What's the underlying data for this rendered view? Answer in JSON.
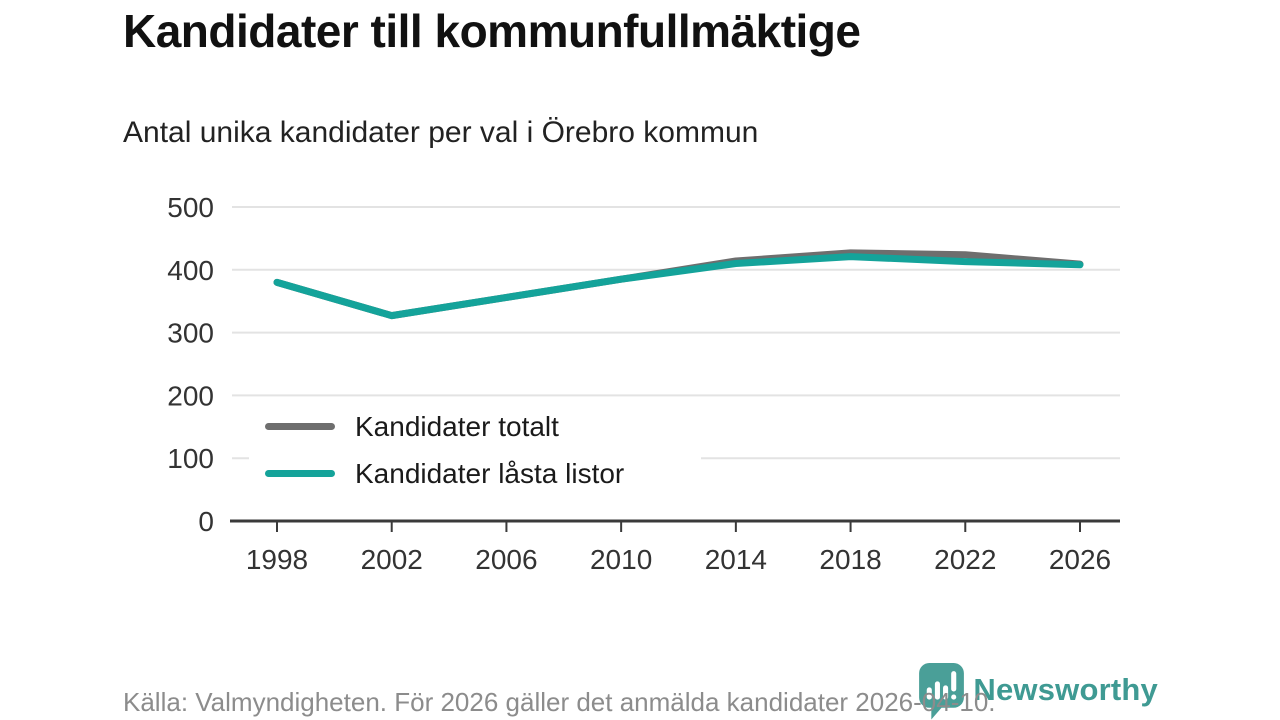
{
  "header": {
    "title": "Kandidater till kommunfullmäktige",
    "subtitle": "Antal unika kandidater per val i Örebro kommun"
  },
  "chart_data": {
    "type": "line",
    "title": "Kandidater till kommunfullmäktige",
    "subtitle": "Antal unika kandidater per val i Örebro kommun",
    "x": [
      1998,
      2002,
      2006,
      2010,
      2014,
      2018,
      2022,
      2026
    ],
    "series": [
      {
        "name": "Kandidater totalt",
        "color": "#6e6e6e",
        "values": [
          380,
          327,
          356,
          385,
          414,
          427,
          424,
          409
        ]
      },
      {
        "name": "Kandidater låsta listor",
        "color": "#14a39a",
        "values": [
          380,
          327,
          356,
          385,
          410,
          421,
          413,
          408
        ]
      }
    ],
    "xlabel": "",
    "ylabel": "",
    "ylim": [
      0,
      500
    ],
    "yticks": [
      0,
      100,
      200,
      300,
      400,
      500
    ],
    "grid": "horizontal-only",
    "gridline_color": "#e3e3e3",
    "axis_color": "#3a3a3a",
    "legend_position": "inside-bottom-left"
  },
  "footer": {
    "source": "Källa: Valmyndigheten. För 2026 gäller det anmälda kandidater 2026-04-10.",
    "brand": "Newsworthy",
    "brand_color": "#3f9a93",
    "brand_icon_color": "#4a9f98"
  }
}
